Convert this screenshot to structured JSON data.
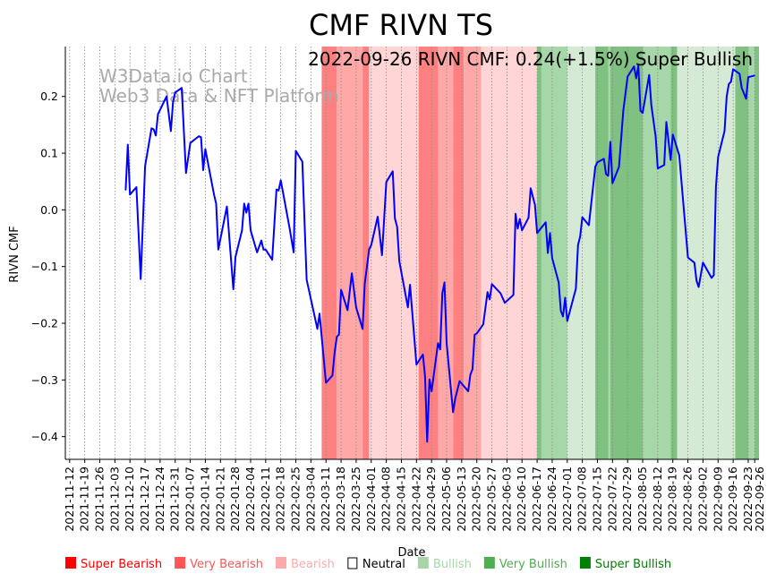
{
  "chart_data": {
    "type": "line",
    "title": "CMF RIVN TS",
    "annotation": "2022-09-26 RIVN CMF: 0.24(+1.5%) Super Bullish",
    "watermark": [
      "W3Data.io Chart",
      "Web3 Data & NFT Platform"
    ],
    "xlabel": "Date",
    "ylabel": "RIVN CMF",
    "xlim": [
      "2021-11-10",
      "2022-09-28"
    ],
    "ylim": [
      -0.44,
      0.288
    ],
    "grid": "vertical dotted at x ticks",
    "y_ticks": [
      -0.4,
      -0.3,
      -0.2,
      -0.1,
      0.0,
      0.1,
      0.2
    ],
    "y_tick_labels": [
      "−0.4",
      "−0.3",
      "−0.2",
      "−0.1",
      "0.0",
      "0.1",
      "0.2"
    ],
    "x_ticks": [
      "2021-11-12",
      "2021-11-19",
      "2021-11-26",
      "2021-12-03",
      "2021-12-10",
      "2021-12-17",
      "2021-12-24",
      "2021-12-31",
      "2022-01-07",
      "2022-01-14",
      "2022-01-21",
      "2022-01-28",
      "2022-02-04",
      "2022-02-11",
      "2022-02-18",
      "2022-02-25",
      "2022-03-04",
      "2022-03-11",
      "2022-03-18",
      "2022-03-25",
      "2022-04-01",
      "2022-04-08",
      "2022-04-15",
      "2022-04-22",
      "2022-04-29",
      "2022-05-06",
      "2022-05-13",
      "2022-05-20",
      "2022-05-27",
      "2022-06-03",
      "2022-06-10",
      "2022-06-17",
      "2022-06-24",
      "2022-07-01",
      "2022-07-08",
      "2022-07-15",
      "2022-07-22",
      "2022-07-29",
      "2022-08-05",
      "2022-08-12",
      "2022-08-19",
      "2022-08-26",
      "2022-09-02",
      "2022-09-09",
      "2022-09-16",
      "2022-09-23",
      "2022-09-26"
    ],
    "series": [
      {
        "name": "RIVN CMF",
        "color": "#0000ff",
        "points": [
          [
            "2021-12-08",
            0.035
          ],
          [
            "2021-12-09",
            0.115
          ],
          [
            "2021-12-10",
            0.027
          ],
          [
            "2021-12-13",
            0.04
          ],
          [
            "2021-12-15",
            -0.122
          ],
          [
            "2021-12-17",
            0.077
          ],
          [
            "2021-12-20",
            0.144
          ],
          [
            "2021-12-21",
            0.142
          ],
          [
            "2021-12-22",
            0.131
          ],
          [
            "2021-12-23",
            0.169
          ],
          [
            "2021-12-27",
            0.2
          ],
          [
            "2021-12-29",
            0.139
          ],
          [
            "2021-12-30",
            0.19
          ],
          [
            "2021-12-31",
            0.207
          ],
          [
            "2022-01-03",
            0.215
          ],
          [
            "2022-01-05",
            0.065
          ],
          [
            "2022-01-07",
            0.118
          ],
          [
            "2022-01-11",
            0.13
          ],
          [
            "2022-01-12",
            0.128
          ],
          [
            "2022-01-13",
            0.07
          ],
          [
            "2022-01-14",
            0.107
          ],
          [
            "2022-01-18",
            0.027
          ],
          [
            "2022-01-19",
            0.011
          ],
          [
            "2022-01-20",
            -0.07
          ],
          [
            "2022-01-24",
            0.006
          ],
          [
            "2022-01-27",
            -0.14
          ],
          [
            "2022-01-28",
            -0.083
          ],
          [
            "2022-01-31",
            -0.036
          ],
          [
            "2022-02-01",
            0.011
          ],
          [
            "2022-02-02",
            -0.005
          ],
          [
            "2022-02-03",
            0.011
          ],
          [
            "2022-02-04",
            -0.036
          ],
          [
            "2022-02-07",
            -0.075
          ],
          [
            "2022-02-09",
            -0.054
          ],
          [
            "2022-02-10",
            -0.07
          ],
          [
            "2022-02-11",
            -0.07
          ],
          [
            "2022-02-14",
            -0.088
          ],
          [
            "2022-02-16",
            0.036
          ],
          [
            "2022-02-17",
            0.034
          ],
          [
            "2022-02-18",
            0.052
          ],
          [
            "2022-02-22",
            -0.03
          ],
          [
            "2022-02-24",
            -0.075
          ],
          [
            "2022-02-25",
            0.104
          ],
          [
            "2022-02-28",
            0.085
          ],
          [
            "2022-03-02",
            -0.123
          ],
          [
            "2022-03-07",
            -0.21
          ],
          [
            "2022-03-08",
            -0.183
          ],
          [
            "2022-03-11",
            -0.305
          ],
          [
            "2022-03-14",
            -0.292
          ],
          [
            "2022-03-15",
            -0.251
          ],
          [
            "2022-03-16",
            -0.224
          ],
          [
            "2022-03-17",
            -0.22
          ],
          [
            "2022-03-18",
            -0.141
          ],
          [
            "2022-03-21",
            -0.177
          ],
          [
            "2022-03-23",
            -0.112
          ],
          [
            "2022-03-25",
            -0.172
          ],
          [
            "2022-03-28",
            -0.21
          ],
          [
            "2022-03-29",
            -0.131
          ],
          [
            "2022-03-31",
            -0.07
          ],
          [
            "2022-04-01",
            -0.062
          ],
          [
            "2022-04-04",
            -0.012
          ],
          [
            "2022-04-06",
            -0.08
          ],
          [
            "2022-04-08",
            0.049
          ],
          [
            "2022-04-11",
            0.068
          ],
          [
            "2022-04-12",
            -0.015
          ],
          [
            "2022-04-13",
            -0.03
          ],
          [
            "2022-04-14",
            -0.09
          ],
          [
            "2022-04-18",
            -0.172
          ],
          [
            "2022-04-19",
            -0.132
          ],
          [
            "2022-04-22",
            -0.273
          ],
          [
            "2022-04-25",
            -0.255
          ],
          [
            "2022-04-26",
            -0.294
          ],
          [
            "2022-04-27",
            -0.409
          ],
          [
            "2022-04-28",
            -0.299
          ],
          [
            "2022-04-29",
            -0.32
          ],
          [
            "2022-05-02",
            -0.235
          ],
          [
            "2022-05-03",
            -0.246
          ],
          [
            "2022-05-04",
            -0.147
          ],
          [
            "2022-05-05",
            -0.128
          ],
          [
            "2022-05-06",
            -0.235
          ],
          [
            "2022-05-09",
            -0.357
          ],
          [
            "2022-05-10",
            -0.333
          ],
          [
            "2022-05-12",
            -0.302
          ],
          [
            "2022-05-16",
            -0.32
          ],
          [
            "2022-05-17",
            -0.291
          ],
          [
            "2022-05-18",
            -0.281
          ],
          [
            "2022-05-19",
            -0.22
          ],
          [
            "2022-05-20",
            -0.218
          ],
          [
            "2022-05-23",
            -0.202
          ],
          [
            "2022-05-25",
            -0.145
          ],
          [
            "2022-05-26",
            -0.158
          ],
          [
            "2022-05-27",
            -0.131
          ],
          [
            "2022-05-31",
            -0.147
          ],
          [
            "2022-06-02",
            -0.164
          ],
          [
            "2022-06-06",
            -0.15
          ],
          [
            "2022-06-07",
            -0.007
          ],
          [
            "2022-06-08",
            -0.033
          ],
          [
            "2022-06-09",
            -0.016
          ],
          [
            "2022-06-10",
            -0.036
          ],
          [
            "2022-06-13",
            -0.014
          ],
          [
            "2022-06-14",
            0.038
          ],
          [
            "2022-06-16",
            0.009
          ],
          [
            "2022-06-17",
            -0.041
          ],
          [
            "2022-06-21",
            -0.022
          ],
          [
            "2022-06-22",
            -0.076
          ],
          [
            "2022-06-23",
            -0.041
          ],
          [
            "2022-06-24",
            -0.085
          ],
          [
            "2022-06-27",
            -0.128
          ],
          [
            "2022-06-28",
            -0.178
          ],
          [
            "2022-06-29",
            -0.188
          ],
          [
            "2022-06-30",
            -0.155
          ],
          [
            "2022-07-01",
            -0.196
          ],
          [
            "2022-07-05",
            -0.139
          ],
          [
            "2022-07-06",
            -0.062
          ],
          [
            "2022-07-07",
            -0.047
          ],
          [
            "2022-07-08",
            -0.013
          ],
          [
            "2022-07-11",
            -0.027
          ],
          [
            "2022-07-14",
            0.076
          ],
          [
            "2022-07-15",
            0.084
          ],
          [
            "2022-07-18",
            0.09
          ],
          [
            "2022-07-19",
            0.063
          ],
          [
            "2022-07-20",
            0.06
          ],
          [
            "2022-07-21",
            0.12
          ],
          [
            "2022-07-22",
            0.047
          ],
          [
            "2022-07-25",
            0.076
          ],
          [
            "2022-07-27",
            0.175
          ],
          [
            "2022-07-29",
            0.235
          ],
          [
            "2022-08-01",
            0.253
          ],
          [
            "2022-08-02",
            0.232
          ],
          [
            "2022-08-03",
            0.254
          ],
          [
            "2022-08-04",
            0.175
          ],
          [
            "2022-08-05",
            0.171
          ],
          [
            "2022-08-08",
            0.238
          ],
          [
            "2022-08-09",
            0.185
          ],
          [
            "2022-08-11",
            0.13
          ],
          [
            "2022-08-12",
            0.073
          ],
          [
            "2022-08-15",
            0.079
          ],
          [
            "2022-08-16",
            0.155
          ],
          [
            "2022-08-18",
            0.088
          ],
          [
            "2022-08-19",
            0.133
          ],
          [
            "2022-08-22",
            0.096
          ],
          [
            "2022-08-26",
            -0.084
          ],
          [
            "2022-08-29",
            -0.093
          ],
          [
            "2022-08-30",
            -0.125
          ],
          [
            "2022-08-31",
            -0.136
          ],
          [
            "2022-09-02",
            -0.093
          ],
          [
            "2022-09-06",
            -0.12
          ],
          [
            "2022-09-07",
            -0.115
          ],
          [
            "2022-09-08",
            0.041
          ],
          [
            "2022-09-09",
            0.093
          ],
          [
            "2022-09-12",
            0.139
          ],
          [
            "2022-09-13",
            0.2
          ],
          [
            "2022-09-14",
            0.222
          ],
          [
            "2022-09-15",
            0.226
          ],
          [
            "2022-09-16",
            0.248
          ],
          [
            "2022-09-19",
            0.24
          ],
          [
            "2022-09-20",
            0.215
          ],
          [
            "2022-09-22",
            0.196
          ],
          [
            "2022-09-23",
            0.234
          ],
          [
            "2022-09-26",
            0.237
          ]
        ]
      }
    ],
    "bands": [
      [
        "2022-03-09",
        "2022-03-16",
        "Super Bearish"
      ],
      [
        "2022-03-16",
        "2022-03-28",
        "Very Bearish"
      ],
      [
        "2022-03-28",
        "2022-03-31",
        "Super Bearish"
      ],
      [
        "2022-03-31",
        "2022-04-23",
        "Bearish"
      ],
      [
        "2022-04-23",
        "2022-05-02",
        "Super Bearish"
      ],
      [
        "2022-05-02",
        "2022-05-09",
        "Very Bearish"
      ],
      [
        "2022-05-09",
        "2022-05-14",
        "Super Bearish"
      ],
      [
        "2022-05-14",
        "2022-05-22",
        "Very Bearish"
      ],
      [
        "2022-05-22",
        "2022-06-17",
        "Bearish"
      ],
      [
        "2022-06-17",
        "2022-06-19",
        "Super Bullish"
      ],
      [
        "2022-06-19",
        "2022-07-01",
        "Very Bullish"
      ],
      [
        "2022-07-01",
        "2022-07-14",
        "Bullish"
      ],
      [
        "2022-07-14",
        "2022-07-20",
        "Super Bullish"
      ],
      [
        "2022-07-20",
        "2022-07-21",
        "Very Bullish"
      ],
      [
        "2022-07-21",
        "2022-08-05",
        "Super Bullish"
      ],
      [
        "2022-08-05",
        "2022-08-18",
        "Very Bullish"
      ],
      [
        "2022-08-18",
        "2022-08-21",
        "Super Bullish"
      ],
      [
        "2022-08-21",
        "2022-09-17",
        "Bullish"
      ],
      [
        "2022-09-17",
        "2022-09-23",
        "Super Bullish"
      ],
      [
        "2022-09-23",
        "2022-09-26",
        "Very Bullish"
      ],
      [
        "2022-09-26",
        "2022-09-28",
        "Super Bullish"
      ]
    ],
    "band_colors": {
      "Super Bearish": "#ff8080",
      "Very Bearish": "#ffa8a8",
      "Bearish": "#ffd5d5",
      "Bullish": "#d4ead4",
      "Very Bullish": "#a6d7a8",
      "Super Bullish": "#80c080"
    },
    "legend_position": "bottom",
    "legend": [
      {
        "label": "Super Bearish",
        "color": "#ff0000"
      },
      {
        "label": "Very Bearish",
        "color": "#ff5555"
      },
      {
        "label": "Bearish",
        "color": "#ffaaaa"
      },
      {
        "label": "Neutral",
        "color": "#000000",
        "hollow": true
      },
      {
        "label": "Bullish",
        "color": "#a8d5a8"
      },
      {
        "label": "Very Bullish",
        "color": "#4caf50"
      },
      {
        "label": "Super Bullish",
        "color": "#008000"
      }
    ]
  }
}
